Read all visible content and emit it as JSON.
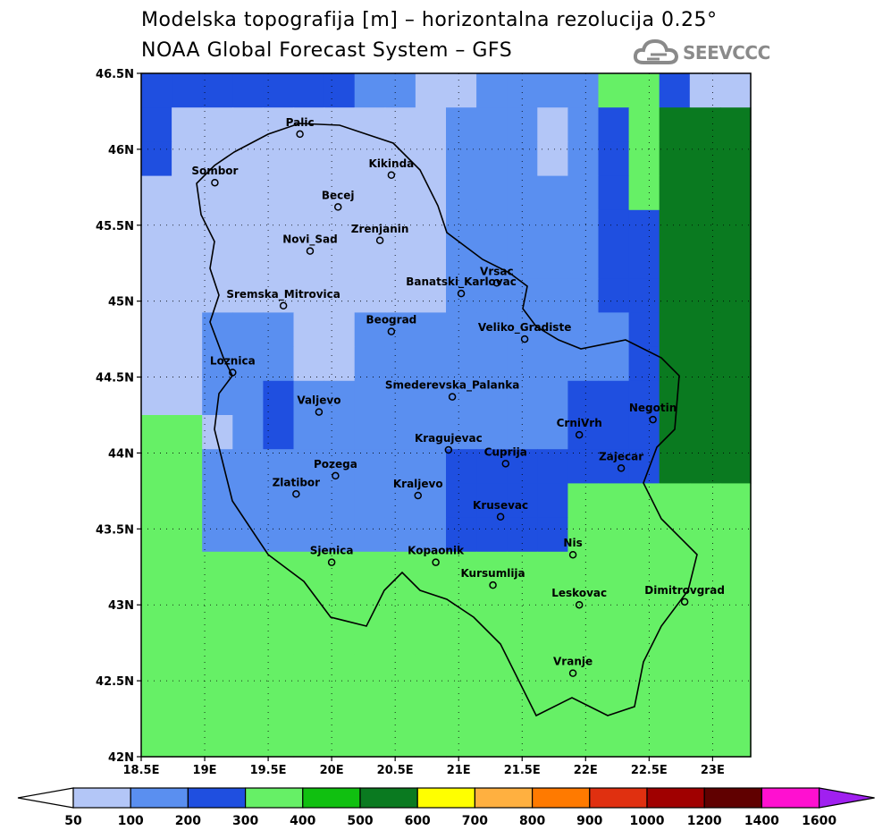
{
  "title_line1": "Modelska topografija [m] – horizontalna rezolucija 0.25°",
  "title_line2": "NOAA Global Forecast System – GFS",
  "logo": {
    "text": "SEEVCCC",
    "icon": "cloud-icon"
  },
  "map": {
    "lon_range": [
      18.5,
      23.3
    ],
    "lat_range": [
      42.0,
      46.5
    ],
    "x_ticks": [
      {
        "v": 18.5,
        "label": "18.5E"
      },
      {
        "v": 19,
        "label": "19E"
      },
      {
        "v": 19.5,
        "label": "19.5E"
      },
      {
        "v": 20,
        "label": "20E"
      },
      {
        "v": 20.5,
        "label": "20.5E"
      },
      {
        "v": 21,
        "label": "21E"
      },
      {
        "v": 21.5,
        "label": "21.5E"
      },
      {
        "v": 22,
        "label": "22E"
      },
      {
        "v": 22.5,
        "label": "22.5E"
      },
      {
        "v": 23,
        "label": "23E"
      }
    ],
    "y_ticks": [
      {
        "v": 46.5,
        "label": "46.5N"
      },
      {
        "v": 46,
        "label": "46N"
      },
      {
        "v": 45.5,
        "label": "45.5N"
      },
      {
        "v": 45,
        "label": "45N"
      },
      {
        "v": 44.5,
        "label": "44.5N"
      },
      {
        "v": 44,
        "label": "44N"
      },
      {
        "v": 43.5,
        "label": "43.5N"
      },
      {
        "v": 43,
        "label": "43N"
      },
      {
        "v": 42.5,
        "label": "42.5N"
      },
      {
        "v": 42,
        "label": "42N"
      }
    ],
    "grid_lines": true,
    "grid_rows_north_to_south": [
      "33333332211222244311",
      "31111111112221234666",
      "31111111112221234666",
      "11111111112222234666",
      "11111111112222233666",
      "11111111112222233666",
      "11111111112222233666",
      "11222112222222223666",
      "11222112222222223666",
      "11223222222222333666",
      "44123222222222333666",
      "44222222223333333666",
      "44222222223333444444",
      "44222222223333444444",
      "44444444444444444444",
      "44444444444444444444",
      "44444444444444444444",
      "44444444444444444444",
      "44444444444444444444",
      "44444444444444444444"
    ],
    "cities": [
      {
        "name": "Palic",
        "lon": 19.75,
        "lat": 46.1
      },
      {
        "name": "Sombor",
        "lon": 19.08,
        "lat": 45.78
      },
      {
        "name": "Kikinda",
        "lon": 20.47,
        "lat": 45.83
      },
      {
        "name": "Becej",
        "lon": 20.05,
        "lat": 45.62
      },
      {
        "name": "Zrenjanin",
        "lon": 20.38,
        "lat": 45.4
      },
      {
        "name": "Novi_Sad",
        "lon": 19.83,
        "lat": 45.33
      },
      {
        "name": "Vrsac",
        "lon": 21.3,
        "lat": 45.12
      },
      {
        "name": "Banatski_Karlovac",
        "lon": 21.02,
        "lat": 45.05
      },
      {
        "name": "Sremska_Mitrovica",
        "lon": 19.62,
        "lat": 44.97
      },
      {
        "name": "Beograd",
        "lon": 20.47,
        "lat": 44.8
      },
      {
        "name": "Veliko_Gradiste",
        "lon": 21.52,
        "lat": 44.75
      },
      {
        "name": "Loznica",
        "lon": 19.22,
        "lat": 44.53
      },
      {
        "name": "Smederevska_Palanka",
        "lon": 20.95,
        "lat": 44.37
      },
      {
        "name": "Valjevo",
        "lon": 19.9,
        "lat": 44.27
      },
      {
        "name": "Negotin",
        "lon": 22.53,
        "lat": 44.22
      },
      {
        "name": "CrniVrh",
        "lon": 21.95,
        "lat": 44.12
      },
      {
        "name": "Kragujevac",
        "lon": 20.92,
        "lat": 44.02
      },
      {
        "name": "Cuprija",
        "lon": 21.37,
        "lat": 43.93
      },
      {
        "name": "Zajecar",
        "lon": 22.28,
        "lat": 43.9
      },
      {
        "name": "Pozega",
        "lon": 20.03,
        "lat": 43.85
      },
      {
        "name": "Zlatibor",
        "lon": 19.72,
        "lat": 43.73
      },
      {
        "name": "Kraljevo",
        "lon": 20.68,
        "lat": 43.72
      },
      {
        "name": "Krusevac",
        "lon": 21.33,
        "lat": 43.58
      },
      {
        "name": "Nis",
        "lon": 21.9,
        "lat": 43.33
      },
      {
        "name": "Sjenica",
        "lon": 20.0,
        "lat": 43.28
      },
      {
        "name": "Kopaonik",
        "lon": 20.82,
        "lat": 43.28
      },
      {
        "name": "Kursumlija",
        "lon": 21.27,
        "lat": 43.13
      },
      {
        "name": "Leskovac",
        "lon": 21.95,
        "lat": 43.0
      },
      {
        "name": "Dimitrovgrad",
        "lon": 22.78,
        "lat": 43.02
      },
      {
        "name": "Vranje",
        "lon": 21.9,
        "lat": 42.55
      }
    ]
  },
  "colorbar": {
    "labels": [
      "50",
      "100",
      "200",
      "300",
      "400",
      "500",
      "600",
      "700",
      "800",
      "900",
      "1000",
      "1200",
      "1400",
      "1600"
    ],
    "colors": [
      "#ffffff",
      "#b3c6f7",
      "#5a8ff0",
      "#1f4fe0",
      "#66f066",
      "#10c010",
      "#0a7a20",
      "#ffff00",
      "#ffb040",
      "#ff7a00",
      "#e03010",
      "#a00000",
      "#600000",
      "#ff10d0",
      "#a020f0"
    ]
  }
}
